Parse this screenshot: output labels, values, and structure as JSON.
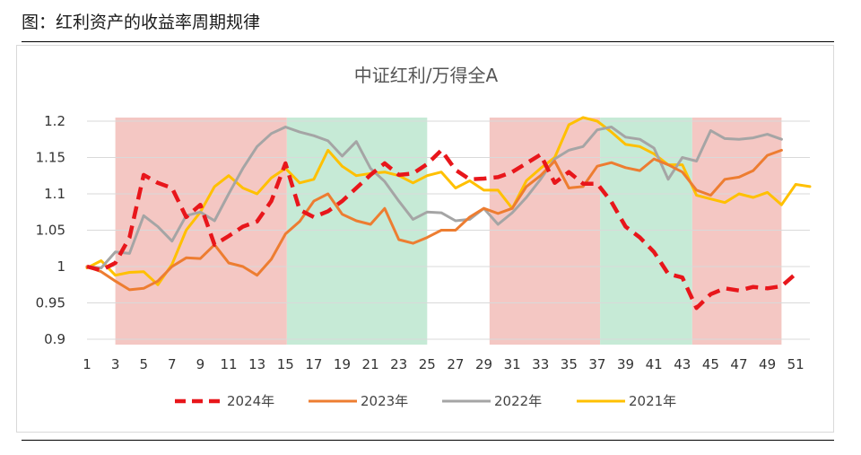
{
  "caption": "图：红利资产的收益率周期规律",
  "chart_data": {
    "type": "line",
    "title": "中证红利/万得全A",
    "xlabel": "",
    "ylabel": "",
    "x_range": [
      1,
      52
    ],
    "x_ticks": [
      1,
      3,
      5,
      7,
      9,
      11,
      13,
      15,
      17,
      19,
      21,
      23,
      25,
      27,
      29,
      31,
      33,
      35,
      37,
      39,
      41,
      43,
      45,
      47,
      49,
      51
    ],
    "ylim": [
      0.9,
      1.2
    ],
    "y_ticks": [
      "0.9",
      "0.95",
      "1",
      "1.05",
      "1.1",
      "1.15",
      "1.2"
    ],
    "grid": true,
    "legend_position": "bottom",
    "shaded_regions": [
      {
        "x_start": 3,
        "x_end": 15.1,
        "color": "#f4c7c3"
      },
      {
        "x_start": 15.1,
        "x_end": 25,
        "color": "#c6ead6"
      },
      {
        "x_start": 29.4,
        "x_end": 37.2,
        "color": "#f4c7c3"
      },
      {
        "x_start": 37.2,
        "x_end": 43.7,
        "color": "#c6ead6"
      },
      {
        "x_start": 43.7,
        "x_end": 50,
        "color": "#f4c7c3"
      }
    ],
    "series": [
      {
        "name": "2024年",
        "color": "#e8161b",
        "dashed": true,
        "width": 4.5,
        "x": [
          1,
          2,
          3,
          4,
          5,
          6,
          7,
          8,
          9,
          10,
          11,
          12,
          13,
          14,
          15,
          16,
          17,
          18,
          19,
          20,
          21,
          22,
          23,
          24,
          25,
          26,
          27,
          28,
          29,
          30,
          31,
          32,
          33,
          34,
          35,
          36,
          37,
          38,
          39,
          40,
          41,
          42,
          43,
          44,
          45,
          46,
          47,
          48,
          49,
          50,
          51
        ],
        "values": [
          1.0,
          0.995,
          1.005,
          1.04,
          1.126,
          1.115,
          1.108,
          1.068,
          1.085,
          1.03,
          1.042,
          1.055,
          1.062,
          1.09,
          1.142,
          1.078,
          1.068,
          1.076,
          1.09,
          1.108,
          1.126,
          1.142,
          1.126,
          1.128,
          1.141,
          1.16,
          1.133,
          1.12,
          1.121,
          1.123,
          1.13,
          1.142,
          1.154,
          1.115,
          1.13,
          1.114,
          1.114,
          1.089,
          1.055,
          1.04,
          1.02,
          0.99,
          0.985,
          0.943,
          0.962,
          0.97,
          0.967,
          0.972,
          0.97,
          0.973,
          0.99
        ]
      },
      {
        "name": "2023年",
        "color": "#ed7d31",
        "dashed": false,
        "width": 3,
        "x": [
          1,
          2,
          3,
          4,
          5,
          6,
          7,
          8,
          9,
          10,
          11,
          12,
          13,
          14,
          15,
          16,
          17,
          18,
          19,
          20,
          21,
          22,
          23,
          24,
          25,
          26,
          27,
          28,
          29,
          30,
          31,
          32,
          33,
          34,
          35,
          36,
          37,
          38,
          39,
          40,
          41,
          42,
          43,
          44,
          45,
          46,
          47,
          48,
          49,
          50
        ],
        "values": [
          1.0,
          0.993,
          0.98,
          0.968,
          0.97,
          0.98,
          1.0,
          1.012,
          1.011,
          1.03,
          1.005,
          1.0,
          0.988,
          1.01,
          1.045,
          1.062,
          1.09,
          1.1,
          1.072,
          1.063,
          1.058,
          1.08,
          1.037,
          1.032,
          1.04,
          1.05,
          1.05,
          1.068,
          1.08,
          1.073,
          1.08,
          1.11,
          1.125,
          1.145,
          1.108,
          1.11,
          1.138,
          1.143,
          1.136,
          1.132,
          1.148,
          1.14,
          1.13,
          1.105,
          1.098,
          1.12,
          1.123,
          1.132,
          1.153,
          1.16
        ]
      },
      {
        "name": "2022年",
        "color": "#a5a5a5",
        "dashed": false,
        "width": 3,
        "x": [
          1,
          2,
          3,
          4,
          5,
          6,
          7,
          8,
          9,
          10,
          11,
          12,
          13,
          14,
          15,
          16,
          17,
          18,
          19,
          20,
          21,
          22,
          23,
          24,
          25,
          26,
          27,
          28,
          29,
          30,
          31,
          32,
          33,
          34,
          35,
          36,
          37,
          38,
          39,
          40,
          41,
          42,
          43,
          44,
          45,
          46,
          47,
          48,
          49,
          50
        ],
        "values": [
          1.0,
          0.998,
          1.02,
          1.018,
          1.07,
          1.055,
          1.035,
          1.07,
          1.075,
          1.063,
          1.1,
          1.135,
          1.165,
          1.183,
          1.192,
          1.185,
          1.18,
          1.173,
          1.152,
          1.172,
          1.135,
          1.117,
          1.09,
          1.065,
          1.075,
          1.074,
          1.063,
          1.065,
          1.08,
          1.058,
          1.074,
          1.095,
          1.12,
          1.148,
          1.16,
          1.165,
          1.188,
          1.192,
          1.178,
          1.175,
          1.163,
          1.12,
          1.15,
          1.145,
          1.187,
          1.176,
          1.175,
          1.177,
          1.182,
          1.175
        ]
      },
      {
        "name": "2021年",
        "color": "#ffc000",
        "dashed": false,
        "width": 3,
        "x": [
          1,
          2,
          3,
          4,
          5,
          6,
          7,
          8,
          9,
          10,
          11,
          12,
          13,
          14,
          15,
          16,
          17,
          18,
          19,
          20,
          21,
          22,
          23,
          24,
          25,
          26,
          27,
          28,
          29,
          30,
          31,
          32,
          33,
          34,
          35,
          36,
          37,
          38,
          39,
          40,
          41,
          42,
          43,
          44,
          45,
          46,
          47,
          48,
          49,
          50,
          51,
          52
        ],
        "values": [
          0.998,
          1.008,
          0.988,
          0.992,
          0.993,
          0.975,
          1.003,
          1.05,
          1.075,
          1.11,
          1.125,
          1.108,
          1.1,
          1.122,
          1.135,
          1.115,
          1.12,
          1.16,
          1.138,
          1.125,
          1.128,
          1.13,
          1.125,
          1.115,
          1.125,
          1.13,
          1.108,
          1.118,
          1.105,
          1.105,
          1.08,
          1.118,
          1.135,
          1.15,
          1.195,
          1.205,
          1.2,
          1.185,
          1.168,
          1.165,
          1.155,
          1.14,
          1.14,
          1.098,
          1.093,
          1.088,
          1.1,
          1.095,
          1.102,
          1.085,
          1.113,
          1.11
        ]
      }
    ]
  }
}
